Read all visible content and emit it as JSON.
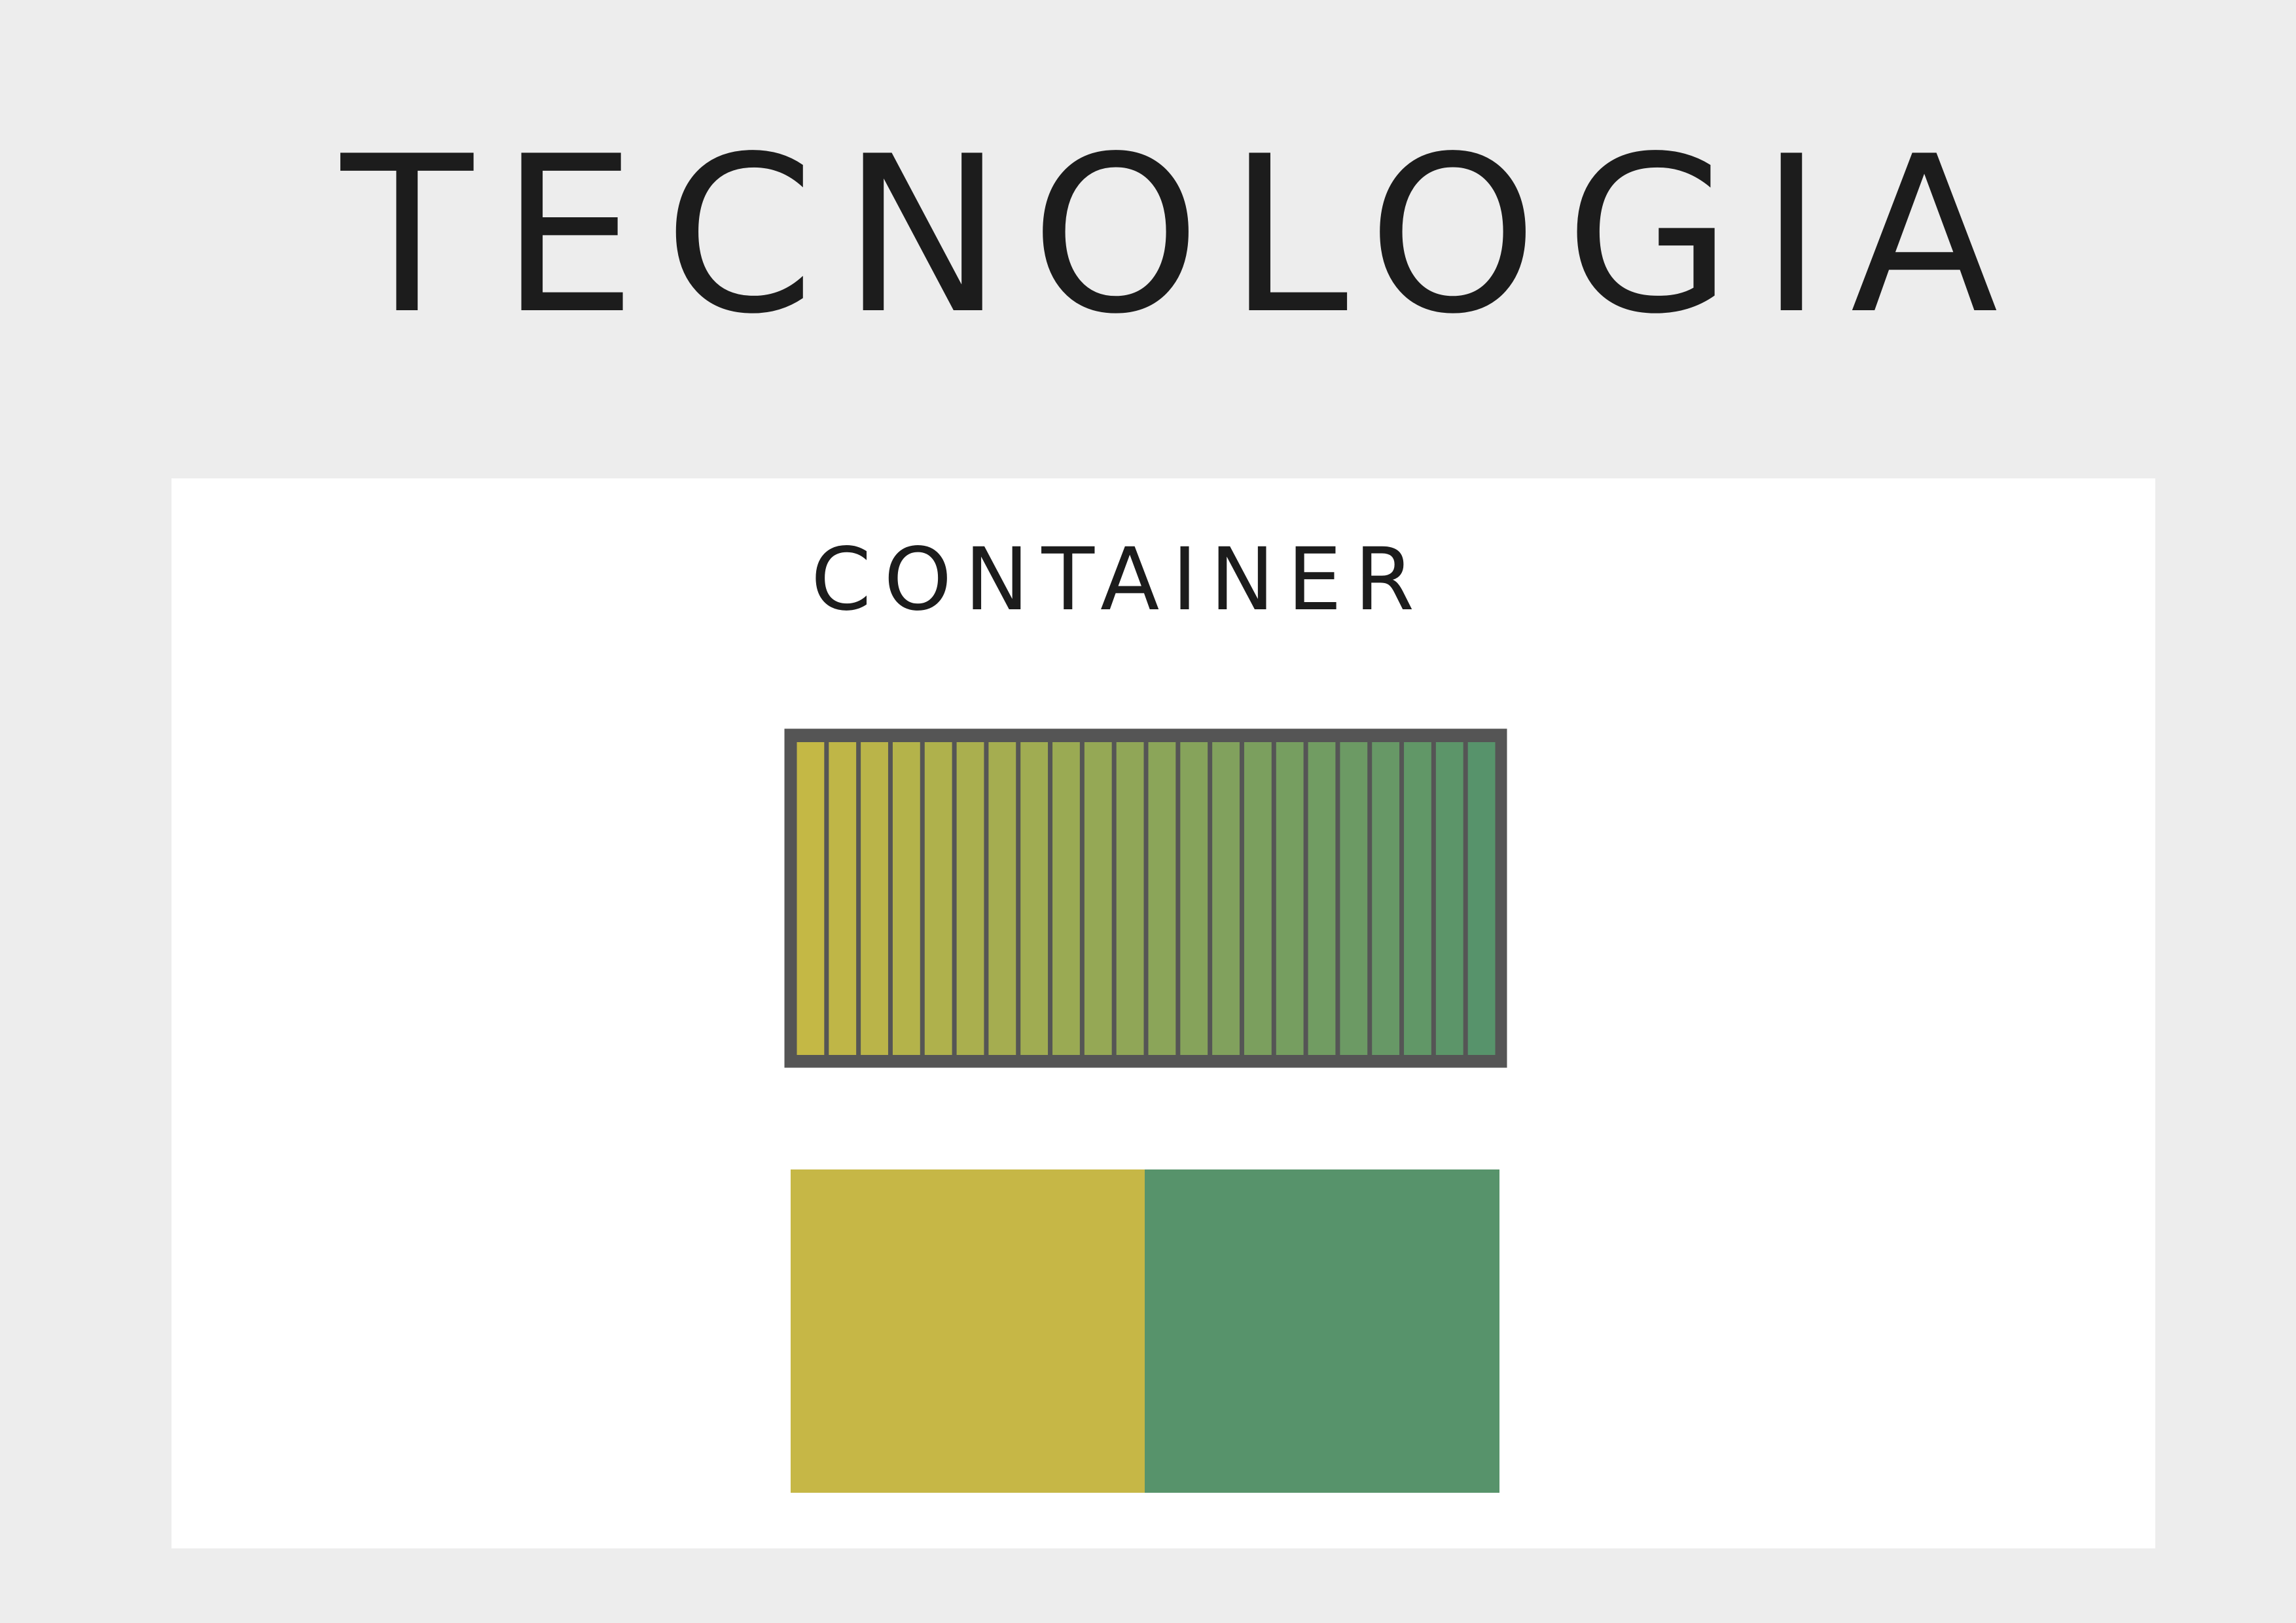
{
  "header": {
    "title": "TECNOLOGIA"
  },
  "panel": {
    "title": "CONTAINER"
  }
}
